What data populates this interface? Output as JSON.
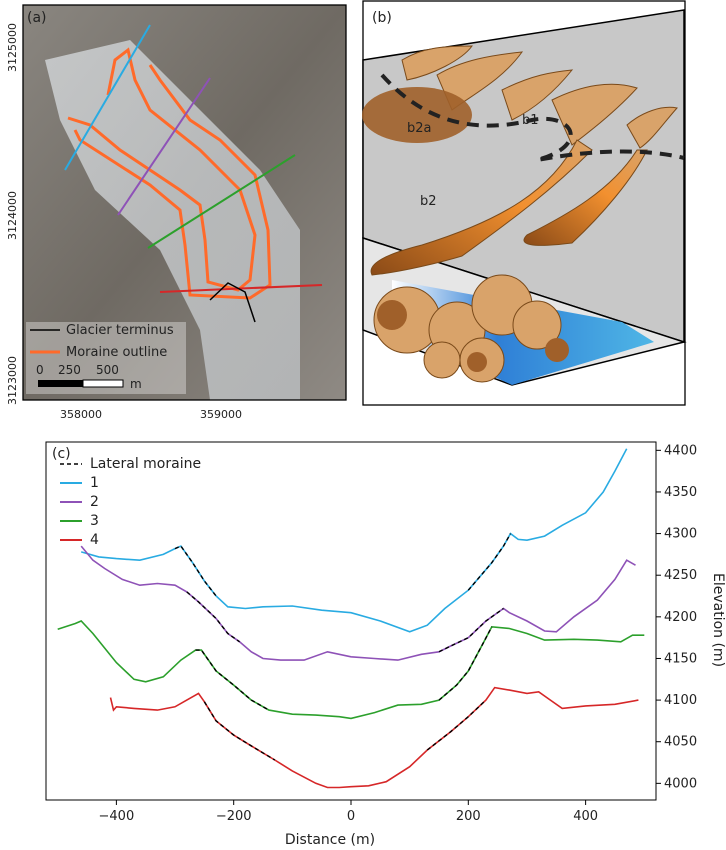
{
  "panel_a": {
    "label": "(a)",
    "y_ticks": [
      "3125000",
      "3124000",
      "3123000"
    ],
    "x_ticks": [
      "358000",
      "359000"
    ],
    "legend": {
      "terminus": "Glacier terminus",
      "moraine": "Moraine outline"
    },
    "scale": {
      "ticks": [
        "0",
        "250",
        "500"
      ],
      "unit": "m"
    }
  },
  "panel_b": {
    "label": "(b)",
    "labels": {
      "b1": "b1",
      "b2": "b2",
      "b2a": "b2a"
    }
  },
  "chart_data": {
    "type": "line",
    "label": "(c)",
    "xlabel": "Distance (m)",
    "ylabel": "Elevation (m)",
    "xlim": [
      -520,
      520
    ],
    "ylim": [
      3980,
      4410
    ],
    "x_ticks": [
      -400,
      -200,
      0,
      200,
      400
    ],
    "y_ticks": [
      4000,
      4050,
      4100,
      4150,
      4200,
      4250,
      4300,
      4350,
      4400
    ],
    "legend_position": "top-left",
    "legend_dashed": "Lateral moraine",
    "series": [
      {
        "name": "1",
        "color": "#29abe2",
        "x": [
          -460,
          -430,
          -400,
          -360,
          -320,
          -300,
          -290,
          -270,
          -250,
          -230,
          -210,
          -180,
          -150,
          -100,
          -50,
          0,
          50,
          100,
          130,
          160,
          200,
          240,
          260,
          272,
          285,
          300,
          330,
          360,
          400,
          430,
          450,
          470
        ],
        "y": [
          4278,
          4272,
          4270,
          4268,
          4275,
          4282,
          4285,
          4265,
          4243,
          4225,
          4212,
          4210,
          4212,
          4213,
          4208,
          4205,
          4195,
          4182,
          4190,
          4210,
          4232,
          4265,
          4285,
          4300,
          4293,
          4292,
          4297,
          4310,
          4325,
          4350,
          4375,
          4402
        ],
        "moraine": [
          [
            -300,
            -220
          ],
          [
            180,
            275
          ]
        ]
      },
      {
        "name": "2",
        "color": "#8e52b7",
        "x": [
          -460,
          -440,
          -420,
          -390,
          -360,
          -330,
          -300,
          -280,
          -260,
          -230,
          -210,
          -190,
          -170,
          -150,
          -120,
          -80,
          -40,
          0,
          40,
          80,
          120,
          150,
          170,
          200,
          230,
          260,
          270,
          300,
          330,
          350,
          380,
          420,
          450,
          470,
          485
        ],
        "y": [
          4285,
          4268,
          4258,
          4245,
          4238,
          4240,
          4238,
          4230,
          4218,
          4198,
          4180,
          4170,
          4158,
          4150,
          4148,
          4148,
          4158,
          4152,
          4150,
          4148,
          4155,
          4158,
          4165,
          4175,
          4195,
          4210,
          4205,
          4195,
          4183,
          4182,
          4200,
          4220,
          4245,
          4268,
          4262
        ],
        "moraine": [
          [
            -290,
            -180
          ],
          [
            150,
            265
          ]
        ]
      },
      {
        "name": "3",
        "color": "#2ca02c",
        "x": [
          -500,
          -470,
          -460,
          -440,
          -400,
          -370,
          -350,
          -320,
          -290,
          -265,
          -255,
          -230,
          -200,
          -170,
          -140,
          -100,
          -60,
          -20,
          0,
          40,
          80,
          120,
          150,
          180,
          200,
          225,
          240,
          270,
          300,
          330,
          380,
          420,
          460,
          480,
          500
        ],
        "y": [
          4185,
          4192,
          4195,
          4180,
          4145,
          4125,
          4122,
          4128,
          4148,
          4160,
          4160,
          4135,
          4118,
          4100,
          4088,
          4083,
          4082,
          4080,
          4078,
          4085,
          4094,
          4095,
          4100,
          4118,
          4135,
          4168,
          4188,
          4186,
          4180,
          4172,
          4173,
          4172,
          4170,
          4178,
          4178
        ],
        "moraine": [
          [
            -265,
            -130
          ],
          [
            140,
            240
          ]
        ]
      },
      {
        "name": "4",
        "color": "#d62728",
        "x": [
          -410,
          -405,
          -400,
          -370,
          -330,
          -300,
          -280,
          -260,
          -250,
          -230,
          -200,
          -170,
          -130,
          -100,
          -60,
          -40,
          -20,
          0,
          30,
          60,
          100,
          130,
          170,
          200,
          230,
          245,
          270,
          300,
          320,
          340,
          360,
          400,
          450,
          490
        ],
        "y": [
          4103,
          4088,
          4092,
          4090,
          4088,
          4092,
          4100,
          4108,
          4098,
          4075,
          4058,
          4045,
          4028,
          4015,
          4000,
          3995,
          3995,
          3996,
          3997,
          4002,
          4020,
          4040,
          4062,
          4080,
          4100,
          4115,
          4112,
          4108,
          4110,
          4100,
          4090,
          4093,
          4095,
          4100
        ],
        "moraine": [
          [
            -255,
            -130
          ],
          [
            110,
            240
          ]
        ]
      }
    ]
  },
  "colors": {
    "moraine": "#ff6a2a",
    "terminus": "#000000",
    "sediment": "#d9a36a",
    "sediment_dark": "#a0602a",
    "water": "#4fb6e6",
    "debris": "#b8b8b8"
  }
}
